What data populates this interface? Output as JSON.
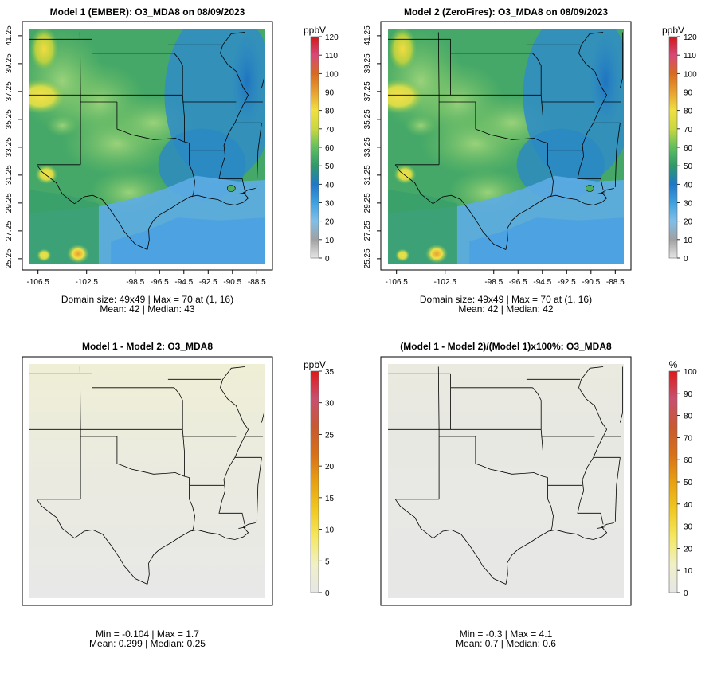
{
  "panels": [
    {
      "title": "Model 1 (EMBER): O3_MDA8 on 08/09/2023",
      "legend_unit": "ppbV",
      "legend_ticks": [
        "0",
        "10",
        "20",
        "30",
        "40",
        "50",
        "60",
        "70",
        "80",
        "90",
        "100",
        "110",
        "120"
      ],
      "legend_type": "concentration",
      "stats": [
        "Domain size: 49x49 | Max = 70 at (1, 16)",
        "Mean: 42 |  Median: 43"
      ],
      "show_axes": true
    },
    {
      "title": "Model 2 (ZeroFires): O3_MDA8 on 08/09/2023",
      "legend_unit": "ppbV",
      "legend_ticks": [
        "0",
        "10",
        "20",
        "30",
        "40",
        "50",
        "60",
        "70",
        "80",
        "90",
        "100",
        "110",
        "120"
      ],
      "legend_type": "concentration",
      "stats": [
        "Domain size: 49x49 | Max = 70 at (1, 16)",
        "Mean: 42 |  Median: 42"
      ],
      "show_axes": true
    },
    {
      "title": "Model 1 - Model 2: O3_MDA8",
      "legend_unit": "ppbV",
      "legend_ticks": [
        "0",
        "5",
        "10",
        "15",
        "20",
        "25",
        "30",
        "35"
      ],
      "legend_type": "difference",
      "stats": [
        "Min = -0.104 | Max = 1.7",
        "Mean: 0.299 |  Median: 0.25"
      ],
      "show_axes": false
    },
    {
      "title": "(Model 1 - Model 2)/(Model 1)x100%: O3_MDA8",
      "legend_unit": "%",
      "legend_ticks": [
        "0",
        "10",
        "20",
        "30",
        "40",
        "50",
        "60",
        "70",
        "80",
        "90",
        "100"
      ],
      "legend_type": "difference",
      "stats": [
        "Min = -0.3 | Max = 4.1",
        "Mean: 0.7 |  Median: 0.6"
      ],
      "show_axes": false
    }
  ],
  "axes": {
    "x_ticks": [
      "-106.5",
      "-102.5",
      "-98.5",
      "-96.5",
      "-94.5",
      "-92.5",
      "-90.5",
      "-88.5"
    ],
    "x_tick_values": [
      -106.5,
      -102.5,
      -98.5,
      -96.5,
      -94.5,
      -92.5,
      -90.5,
      -88.5
    ],
    "y_ticks": [
      "25.25",
      "27.25",
      "29.25",
      "31.25",
      "33.25",
      "35.25",
      "37.25",
      "39.25",
      "41.25"
    ],
    "y_tick_values": [
      25.25,
      27.25,
      29.25,
      31.25,
      33.25,
      35.25,
      37.25,
      39.25,
      41.25
    ],
    "lon_range": [
      -107.2,
      -87.8
    ],
    "lat_range": [
      24.9,
      41.7
    ]
  },
  "colors": {
    "concentration_scale": [
      "#e6e6e6",
      "#a0a0a0",
      "#7fbfe8",
      "#3fa0e0",
      "#1f78c8",
      "#2e9a6a",
      "#5fbf5f",
      "#c8d840",
      "#f0e040",
      "#e8a030",
      "#d86a20",
      "#d84878",
      "#d01818"
    ],
    "difference_scale": [
      "#e6e6e6",
      "#f0f0c8",
      "#f4e860",
      "#f0c820",
      "#e8a010",
      "#d87018",
      "#c85830",
      "#c85070",
      "#e01818"
    ],
    "map_background": "#e6e6e6",
    "boundaries": "#000000"
  }
}
